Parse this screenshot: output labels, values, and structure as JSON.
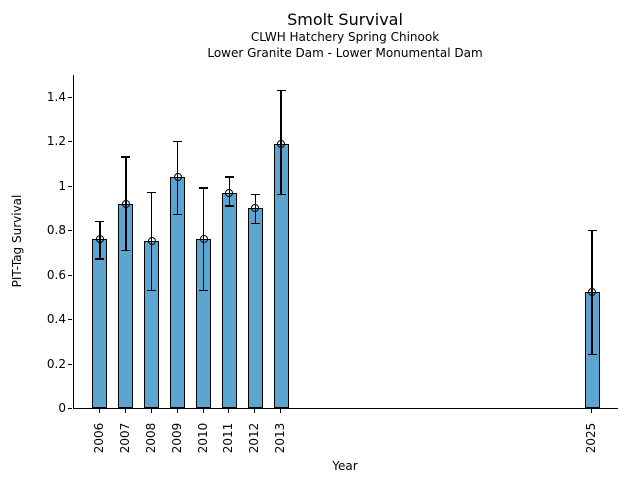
{
  "chart_data": {
    "type": "bar",
    "title": "Smolt Survival",
    "subtitle_line1": "CLWH Hatchery Spring Chinook",
    "subtitle_line2": "Lower Granite Dam - Lower Monumental Dam",
    "xlabel": "Year",
    "ylabel": "PIT-Tag Survival",
    "categories": [
      "2006",
      "2007",
      "2008",
      "2009",
      "2010",
      "2011",
      "2012",
      "2013",
      "2025"
    ],
    "values": [
      0.76,
      0.92,
      0.75,
      1.04,
      0.76,
      0.97,
      0.9,
      1.19,
      0.52
    ],
    "error_high": [
      0.84,
      1.13,
      0.97,
      1.2,
      0.99,
      1.04,
      0.96,
      1.43,
      0.8
    ],
    "error_low": [
      0.67,
      0.71,
      0.53,
      0.87,
      0.53,
      0.91,
      0.83,
      0.96,
      0.24
    ],
    "ylim": [
      0,
      1.4
    ],
    "xlim": [
      2005,
      2026
    ],
    "yticks": [
      0,
      0.2,
      0.4,
      0.6,
      0.8,
      1,
      1.2,
      1.4
    ],
    "ytick_labels": [
      "0",
      "0.2",
      "0.4",
      "0.6",
      "0.8",
      "1",
      "1.2",
      "1.4"
    ],
    "grid": false,
    "legend": "none",
    "marker": "open-circle",
    "bar_color": "#5BA5D0",
    "bar_edge_color": "#000000",
    "error_bar_color": "#000000",
    "background_color": "#FFFFFF"
  }
}
